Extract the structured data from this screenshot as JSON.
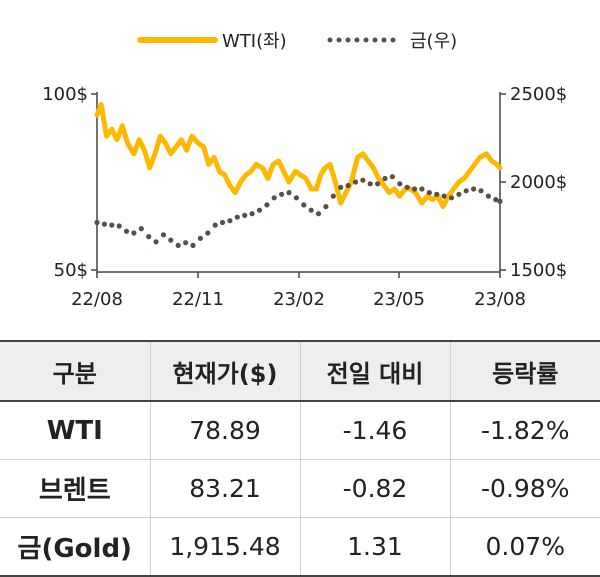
{
  "chart_data": {
    "type": "line",
    "legend_position": "top",
    "x_tick_labels": [
      "22/08",
      "22/11",
      "23/02",
      "23/05",
      "23/08"
    ],
    "y_left": {
      "ticks": [
        "100$",
        "50$"
      ],
      "ylim": [
        50,
        100
      ]
    },
    "y_right": {
      "ticks": [
        "2500$",
        "2000$",
        "1500$"
      ],
      "ylim": [
        1500,
        2500
      ]
    },
    "series": [
      {
        "name": "WTI(좌)",
        "axis": "left",
        "style": "solid",
        "color": "#FFB800",
        "x": [
          "2022-08-01",
          "2022-08-05",
          "2022-08-10",
          "2022-08-15",
          "2022-08-20",
          "2022-08-25",
          "2022-08-30",
          "2022-09-05",
          "2022-09-10",
          "2022-09-15",
          "2022-09-20",
          "2022-09-25",
          "2022-09-30",
          "2022-10-05",
          "2022-10-10",
          "2022-10-15",
          "2022-10-20",
          "2022-10-25",
          "2022-10-30",
          "2022-11-05",
          "2022-11-10",
          "2022-11-15",
          "2022-11-20",
          "2022-11-25",
          "2022-11-30",
          "2022-12-05",
          "2022-12-10",
          "2022-12-15",
          "2022-12-20",
          "2022-12-25",
          "2022-12-30",
          "2023-01-05",
          "2023-01-10",
          "2023-01-15",
          "2023-01-20",
          "2023-01-25",
          "2023-01-30",
          "2023-02-05",
          "2023-02-10",
          "2023-02-15",
          "2023-02-20",
          "2023-02-25",
          "2023-03-01",
          "2023-03-05",
          "2023-03-10",
          "2023-03-15",
          "2023-03-20",
          "2023-03-25",
          "2023-03-30",
          "2023-04-05",
          "2023-04-10",
          "2023-04-15",
          "2023-04-20",
          "2023-04-25",
          "2023-04-30",
          "2023-05-05",
          "2023-05-10",
          "2023-05-15",
          "2023-05-20",
          "2023-05-25",
          "2023-05-30",
          "2023-06-05",
          "2023-06-10",
          "2023-06-15",
          "2023-06-20",
          "2023-06-25",
          "2023-06-30",
          "2023-07-05",
          "2023-07-10",
          "2023-07-15",
          "2023-07-20",
          "2023-07-25",
          "2023-07-30",
          "2023-08-05",
          "2023-08-10",
          "2023-08-15",
          "2023-08-18"
        ],
        "y": [
          94,
          97,
          88,
          90,
          87,
          91,
          86,
          83,
          87,
          84,
          79,
          83,
          88,
          86,
          83,
          85,
          87,
          84,
          88,
          86,
          85,
          80,
          82,
          78,
          77,
          74,
          72,
          75,
          77,
          78,
          80,
          79,
          76,
          80,
          81,
          78,
          75,
          78,
          77,
          76,
          73,
          73,
          77,
          79,
          80,
          75,
          69,
          72,
          75,
          82,
          83,
          81,
          79,
          76,
          74,
          72,
          73,
          71,
          73,
          73,
          72,
          69,
          71,
          70,
          71,
          68,
          71,
          73,
          75,
          76,
          78,
          80,
          82,
          83,
          81,
          80,
          79
        ]
      },
      {
        "name": "금(우)",
        "axis": "right",
        "style": "dotted",
        "color": "#5a4f48",
        "x": [
          "2022-08-01",
          "2022-08-08",
          "2022-08-15",
          "2022-08-22",
          "2022-08-29",
          "2022-09-05",
          "2022-09-12",
          "2022-09-19",
          "2022-09-26",
          "2022-10-03",
          "2022-10-10",
          "2022-10-17",
          "2022-10-24",
          "2022-10-31",
          "2022-11-07",
          "2022-11-14",
          "2022-11-21",
          "2022-11-28",
          "2022-12-05",
          "2022-12-12",
          "2022-12-19",
          "2022-12-26",
          "2023-01-02",
          "2023-01-09",
          "2023-01-16",
          "2023-01-23",
          "2023-01-30",
          "2023-02-06",
          "2023-02-13",
          "2023-02-20",
          "2023-02-27",
          "2023-03-06",
          "2023-03-13",
          "2023-03-20",
          "2023-03-27",
          "2023-04-03",
          "2023-04-10",
          "2023-04-17",
          "2023-04-24",
          "2023-05-01",
          "2023-05-08",
          "2023-05-15",
          "2023-05-22",
          "2023-05-29",
          "2023-06-05",
          "2023-06-12",
          "2023-06-19",
          "2023-06-26",
          "2023-07-03",
          "2023-07-10",
          "2023-07-17",
          "2023-07-24",
          "2023-07-31",
          "2023-08-07",
          "2023-08-14",
          "2023-08-18"
        ],
        "y": [
          1770,
          1760,
          1755,
          1750,
          1720,
          1710,
          1735,
          1690,
          1660,
          1700,
          1670,
          1640,
          1655,
          1640,
          1680,
          1710,
          1755,
          1770,
          1780,
          1800,
          1810,
          1820,
          1840,
          1870,
          1910,
          1930,
          1940,
          1910,
          1870,
          1840,
          1820,
          1860,
          1920,
          1970,
          1980,
          2000,
          2010,
          1990,
          1990,
          2020,
          2030,
          1990,
          1970,
          1960,
          1960,
          1940,
          1930,
          1920,
          1910,
          1930,
          1950,
          1960,
          1950,
          1920,
          1900,
          1890
        ]
      }
    ]
  },
  "legend": [
    {
      "label": "WTI(좌)",
      "style": "solid",
      "color": "#FFB800"
    },
    {
      "label": "금(우)",
      "style": "dotted",
      "color": "#5a4f48"
    }
  ],
  "table": {
    "headers": [
      "구분",
      "현재가($)",
      "전일 대비",
      "등락률"
    ],
    "rows": [
      [
        "WTI",
        "78.89",
        "-1.46",
        "-1.82%"
      ],
      [
        "브렌트",
        "83.21",
        "-0.82",
        "-0.98%"
      ],
      [
        "금(Gold)",
        "1,915.48",
        "1.31",
        "0.07%"
      ]
    ]
  }
}
